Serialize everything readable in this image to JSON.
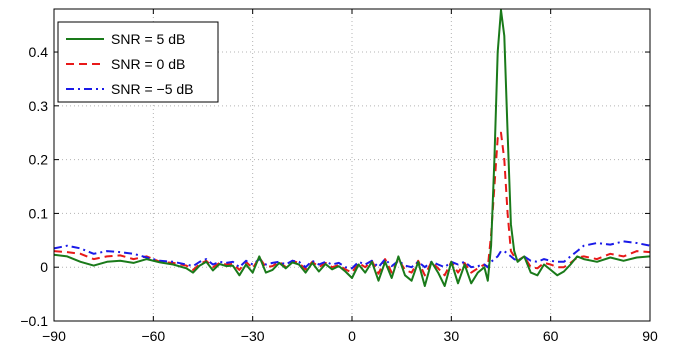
{
  "chart_data": {
    "type": "line",
    "title": "",
    "xlabel": "",
    "ylabel": "",
    "xlim": [
      -90,
      90
    ],
    "ylim": [
      -0.1,
      0.48
    ],
    "grid": true,
    "legend_position": "top-left",
    "xticks": [
      -90,
      -60,
      -30,
      0,
      30,
      60,
      90
    ],
    "xtick_labels": [
      "−90",
      "−60",
      "−30",
      "0",
      "30",
      "60",
      "90"
    ],
    "yticks": [
      -0.1,
      0,
      0.1,
      0.2,
      0.3,
      0.4
    ],
    "ytick_labels": [
      "−0.1",
      "0",
      "0.1",
      "0.2",
      "0.3",
      "0.4"
    ],
    "series": [
      {
        "name": "SNR = 5 dB",
        "color": "#1a7a1a",
        "style": "solid",
        "x": [
          -90,
          -86,
          -82,
          -78,
          -74,
          -70,
          -66,
          -62,
          -58,
          -54,
          -50,
          -48,
          -46,
          -44,
          -42,
          -40,
          -38,
          -36,
          -34,
          -32,
          -30,
          -28,
          -26,
          -24,
          -22,
          -20,
          -18,
          -16,
          -14,
          -12,
          -10,
          -8,
          -6,
          -4,
          -2,
          0,
          2,
          4,
          6,
          8,
          10,
          12,
          14,
          16,
          18,
          20,
          22,
          24,
          26,
          28,
          30,
          32,
          34,
          36,
          38,
          40,
          41,
          42,
          43,
          44,
          45,
          46,
          47,
          48,
          49,
          50,
          52,
          54,
          56,
          58,
          60,
          62,
          64,
          66,
          68,
          70,
          74,
          78,
          82,
          86,
          90
        ],
        "values": [
          0.023,
          0.02,
          0.01,
          0.003,
          0.01,
          0.012,
          0.008,
          0.015,
          0.009,
          0.005,
          -0.002,
          -0.01,
          0.003,
          0.01,
          -0.006,
          0.006,
          0.002,
          0.003,
          -0.015,
          0.005,
          -0.01,
          0.02,
          -0.01,
          -0.005,
          0.008,
          -0.002,
          0.009,
          0.005,
          -0.01,
          0.008,
          -0.008,
          0.006,
          -0.004,
          0.002,
          -0.008,
          -0.02,
          0.005,
          -0.01,
          0.01,
          -0.025,
          0.01,
          -0.02,
          0.02,
          -0.015,
          -0.025,
          0.01,
          -0.035,
          0.01,
          -0.01,
          -0.035,
          0.01,
          -0.03,
          0.005,
          -0.03,
          -0.01,
          0.0,
          -0.025,
          0.04,
          0.2,
          0.4,
          0.478,
          0.43,
          0.25,
          0.08,
          0.03,
          0.01,
          0.02,
          -0.01,
          -0.015,
          0.005,
          -0.005,
          -0.015,
          -0.008,
          0.005,
          0.02,
          0.015,
          0.01,
          0.018,
          0.012,
          0.018,
          0.02
        ]
      },
      {
        "name": "SNR = 0 dB",
        "color": "#e81919",
        "style": "dashed",
        "x": [
          -90,
          -86,
          -82,
          -78,
          -74,
          -70,
          -66,
          -62,
          -58,
          -54,
          -50,
          -48,
          -46,
          -44,
          -42,
          -40,
          -38,
          -36,
          -34,
          -32,
          -30,
          -28,
          -26,
          -24,
          -22,
          -20,
          -18,
          -16,
          -14,
          -12,
          -10,
          -8,
          -6,
          -4,
          -2,
          0,
          2,
          4,
          6,
          8,
          10,
          12,
          14,
          16,
          18,
          20,
          22,
          24,
          26,
          28,
          30,
          32,
          34,
          36,
          38,
          40,
          41,
          42,
          43,
          44,
          45,
          46,
          47,
          48,
          49,
          50,
          52,
          54,
          56,
          58,
          60,
          62,
          64,
          66,
          68,
          70,
          74,
          78,
          82,
          86,
          90
        ],
        "values": [
          0.03,
          0.028,
          0.025,
          0.015,
          0.02,
          0.022,
          0.015,
          0.02,
          0.01,
          0.008,
          0.003,
          -0.005,
          0.006,
          0.012,
          0.0,
          0.008,
          0.005,
          0.006,
          -0.005,
          0.01,
          -0.002,
          0.018,
          0.0,
          0.002,
          0.01,
          0.0,
          0.012,
          0.008,
          -0.004,
          0.01,
          0.0,
          0.008,
          0.0,
          0.004,
          -0.004,
          -0.01,
          0.008,
          0.0,
          0.012,
          -0.012,
          0.015,
          -0.01,
          0.015,
          -0.005,
          -0.01,
          0.012,
          -0.015,
          0.01,
          -0.002,
          -0.015,
          0.01,
          -0.01,
          0.008,
          -0.01,
          -0.002,
          0.005,
          0.0,
          0.06,
          0.15,
          0.24,
          0.25,
          0.2,
          0.1,
          0.03,
          0.02,
          0.012,
          0.02,
          0.0,
          -0.002,
          0.008,
          0.005,
          0.0,
          0.0,
          0.008,
          0.018,
          0.02,
          0.015,
          0.025,
          0.02,
          0.03,
          0.028
        ]
      },
      {
        "name": "SNR = −5 dB",
        "color": "#1a1ae8",
        "style": "dashdot",
        "x": [
          -90,
          -86,
          -82,
          -78,
          -74,
          -70,
          -66,
          -62,
          -58,
          -54,
          -50,
          -48,
          -46,
          -44,
          -42,
          -40,
          -38,
          -36,
          -34,
          -32,
          -30,
          -28,
          -26,
          -24,
          -22,
          -20,
          -18,
          -16,
          -14,
          -12,
          -10,
          -8,
          -6,
          -4,
          -2,
          0,
          2,
          4,
          6,
          8,
          10,
          12,
          14,
          16,
          18,
          20,
          22,
          24,
          26,
          28,
          30,
          32,
          34,
          36,
          38,
          40,
          41,
          42,
          43,
          44,
          45,
          46,
          47,
          48,
          49,
          50,
          52,
          54,
          56,
          58,
          60,
          62,
          64,
          66,
          68,
          70,
          74,
          78,
          82,
          86,
          90
        ],
        "values": [
          0.035,
          0.04,
          0.035,
          0.025,
          0.03,
          0.028,
          0.025,
          0.018,
          0.012,
          0.01,
          0.005,
          0.002,
          0.01,
          0.015,
          0.005,
          0.01,
          0.008,
          0.01,
          0.0,
          0.012,
          0.005,
          0.015,
          0.005,
          0.008,
          0.01,
          0.005,
          0.012,
          0.01,
          0.0,
          0.012,
          0.005,
          0.01,
          0.005,
          0.008,
          0.0,
          -0.002,
          0.01,
          0.005,
          0.012,
          0.0,
          0.015,
          0.002,
          0.012,
          0.003,
          0.0,
          0.01,
          0.0,
          0.01,
          0.005,
          0.0,
          0.01,
          0.005,
          0.01,
          0.0,
          0.002,
          0.005,
          0.0,
          0.01,
          0.015,
          0.02,
          0.03,
          0.03,
          0.025,
          0.02,
          0.015,
          0.012,
          0.02,
          0.012,
          0.01,
          0.015,
          0.012,
          0.01,
          0.01,
          0.02,
          0.03,
          0.04,
          0.045,
          0.042,
          0.048,
          0.045,
          0.04
        ]
      }
    ]
  }
}
